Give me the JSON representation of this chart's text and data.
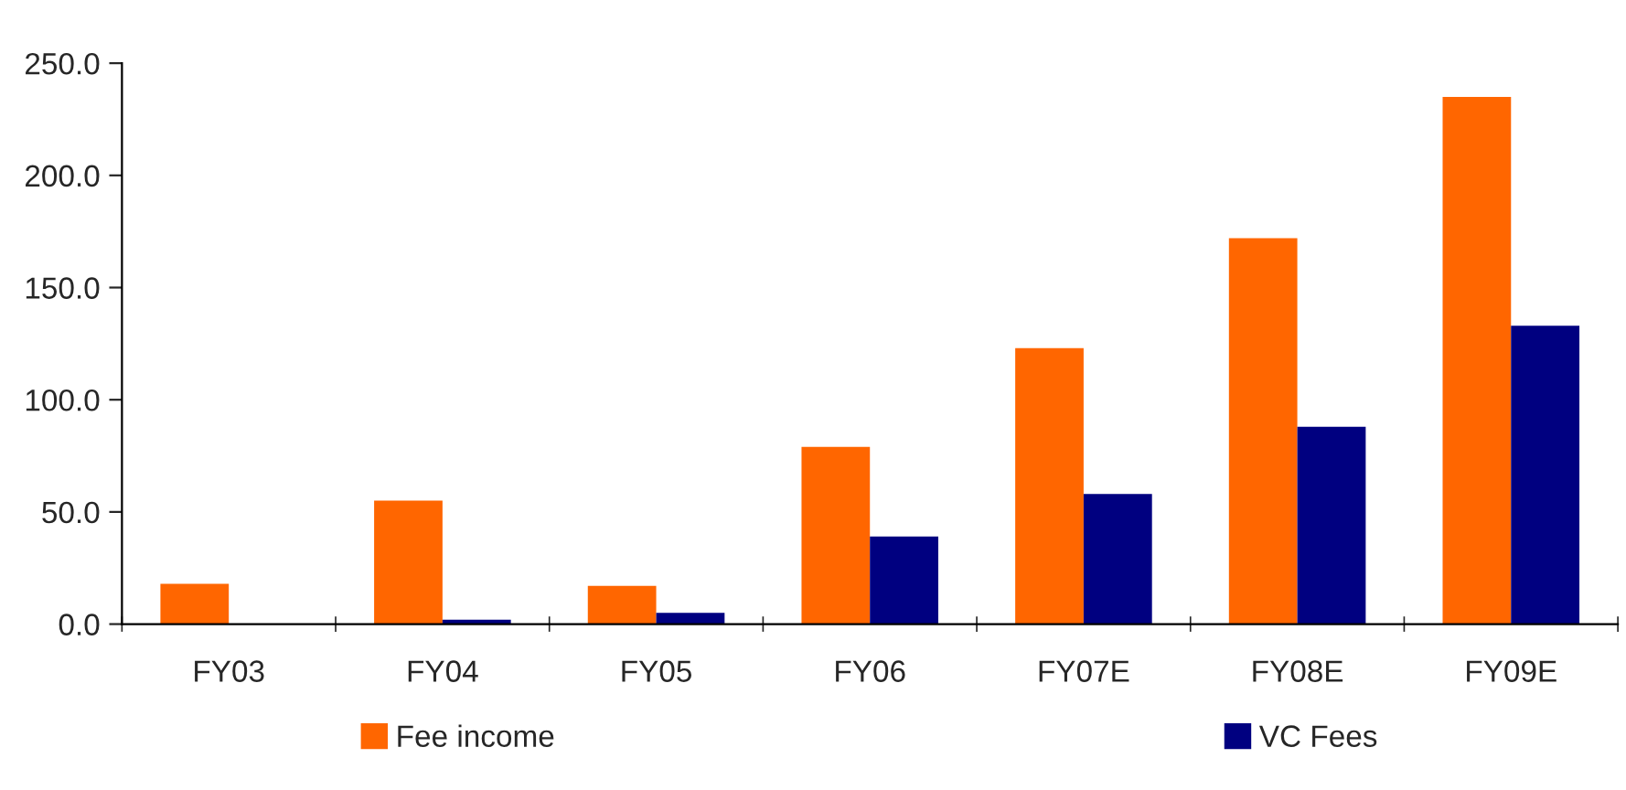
{
  "chart_data": {
    "type": "bar",
    "categories": [
      "FY03",
      "FY04",
      "FY05",
      "FY06",
      "FY07E",
      "FY08E",
      "FY09E"
    ],
    "series": [
      {
        "name": "Fee income",
        "color": "#ff6600",
        "values": [
          18,
          55,
          17,
          79,
          123,
          172,
          235
        ]
      },
      {
        "name": "VC Fees",
        "color": "#000080",
        "values": [
          null,
          2,
          5,
          39,
          58,
          88,
          133
        ]
      }
    ],
    "ylim": [
      0,
      250
    ],
    "yticks": [
      {
        "value": 0,
        "label": "0.0"
      },
      {
        "value": 50,
        "label": "50.0"
      },
      {
        "value": 100,
        "label": "100.0"
      },
      {
        "value": 150,
        "label": "150.0"
      },
      {
        "value": 200,
        "label": "200.0"
      },
      {
        "value": 250,
        "label": "250.0"
      }
    ],
    "grid": false,
    "legend": "bottom"
  }
}
